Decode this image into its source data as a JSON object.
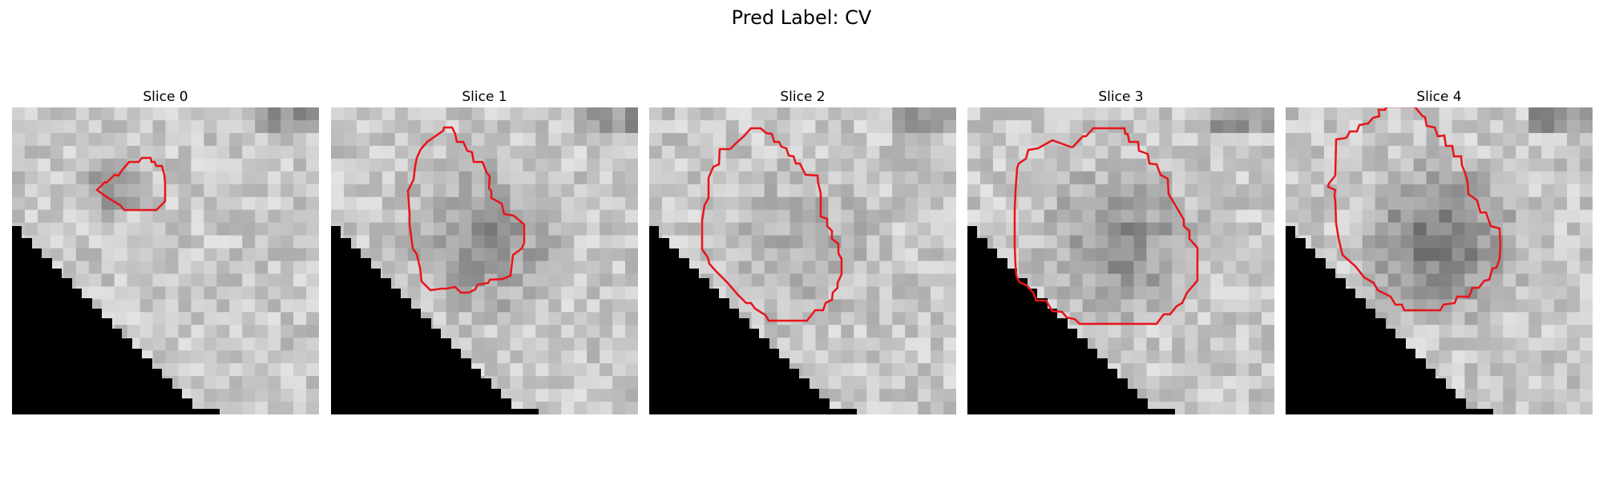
{
  "figure": {
    "title": "Pred Label: CV"
  },
  "colors": {
    "contour": "#e8141a",
    "background_mask": "#000000"
  },
  "slices": [
    {
      "label": "Slice 0"
    },
    {
      "label": "Slice 1"
    },
    {
      "label": "Slice 2"
    },
    {
      "label": "Slice 3"
    },
    {
      "label": "Slice 4"
    }
  ]
}
